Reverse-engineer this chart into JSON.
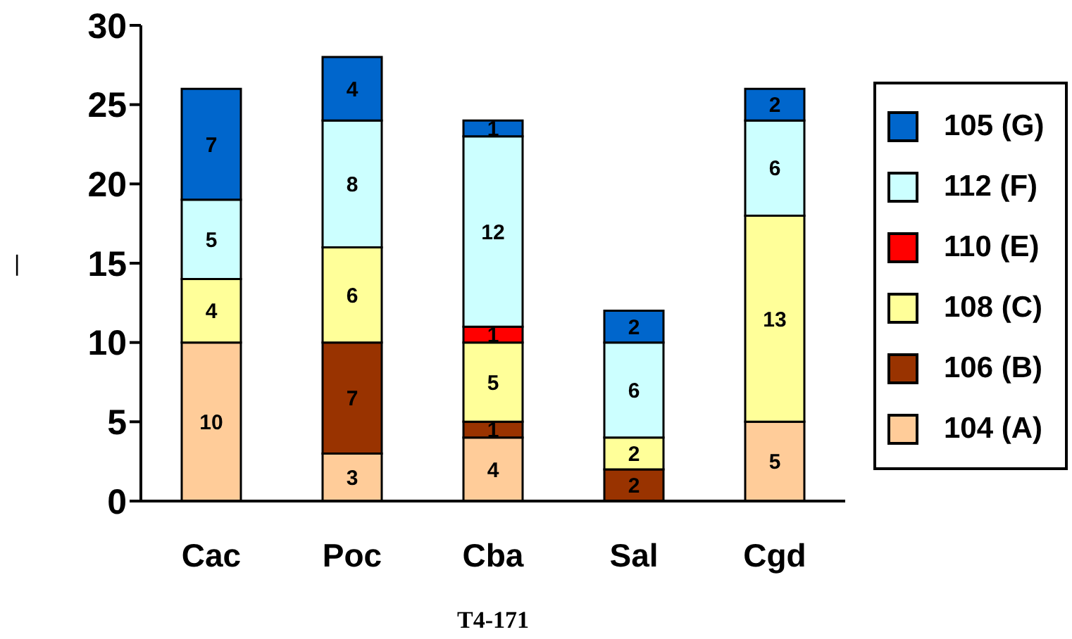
{
  "chart_data": {
    "type": "bar",
    "stacked": true,
    "xlabel": "T4-171",
    "ylabel": "|",
    "categories": [
      "Cac",
      "Poc",
      "Cba",
      "Sal",
      "Cgd"
    ],
    "series": [
      {
        "name": "104 (A)",
        "color": "#ffcc99",
        "values": [
          10,
          3,
          4,
          null,
          5
        ]
      },
      {
        "name": "106 (B)",
        "color": "#993300",
        "values": [
          null,
          7,
          1,
          2,
          null
        ]
      },
      {
        "name": "108 (C)",
        "color": "#ffff99",
        "values": [
          4,
          6,
          5,
          2,
          13
        ]
      },
      {
        "name": "110 (E)",
        "color": "#ff0000",
        "values": [
          null,
          null,
          1,
          null,
          null
        ]
      },
      {
        "name": "112 (F)",
        "color": "#ccffff",
        "values": [
          5,
          8,
          12,
          6,
          6
        ]
      },
      {
        "name": "105 (G)",
        "color": "#0066cc",
        "values": [
          7,
          4,
          1,
          2,
          2
        ]
      }
    ],
    "ylim": [
      0,
      30
    ],
    "yticks": [
      0,
      5,
      10,
      15,
      20,
      25,
      30
    ],
    "data_labels": true,
    "grid": false,
    "legend": "right"
  }
}
